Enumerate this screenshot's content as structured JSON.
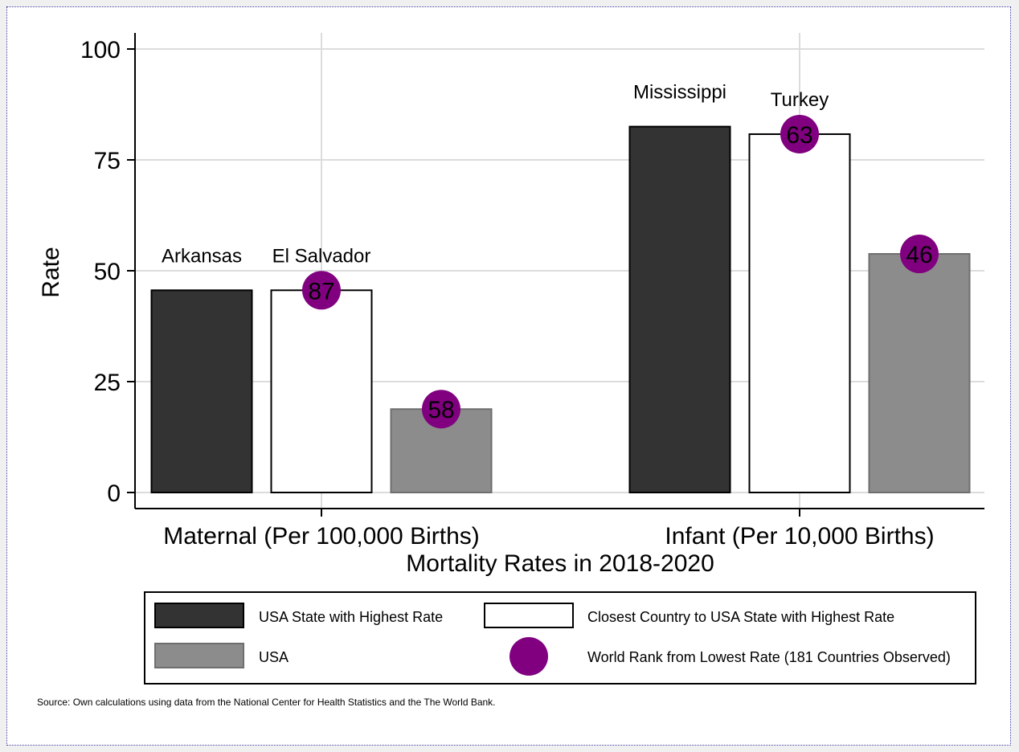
{
  "chart_data": {
    "type": "bar",
    "xlabel": "Mortality Rates in 2018-2020",
    "ylabel": "Rate",
    "ylim": [
      0,
      100
    ],
    "yticks": [
      0,
      25,
      50,
      75,
      100
    ],
    "grid": true,
    "categories": [
      "Maternal (Per 100,000 Births)",
      "Infant (Per 10,000 Births)"
    ],
    "series": [
      {
        "name": "USA State with Highest Rate",
        "color": "#333333",
        "values": [
          45.6,
          82.5
        ],
        "labels": [
          "Arkansas",
          "Mississippi"
        ],
        "ranks": [
          null,
          null
        ]
      },
      {
        "name": "Closest Country to USA State with Highest Rate",
        "color": "#ffffff",
        "values": [
          45.6,
          80.8
        ],
        "labels": [
          "El Salvador",
          "Turkey"
        ],
        "ranks": [
          87,
          63
        ]
      },
      {
        "name": "USA",
        "color": "#8c8c8c",
        "values": [
          18.8,
          53.8
        ],
        "labels": [
          "",
          ""
        ],
        "ranks": [
          58,
          46
        ]
      }
    ],
    "rank_marker": {
      "name": "World Rank from Lowest Rate (181 Countries Observed)",
      "color": "#800080"
    },
    "legend_placement": "bottom",
    "note": "Source: Own calculations using data from the National Center for Health Statistics and the The World Bank."
  }
}
